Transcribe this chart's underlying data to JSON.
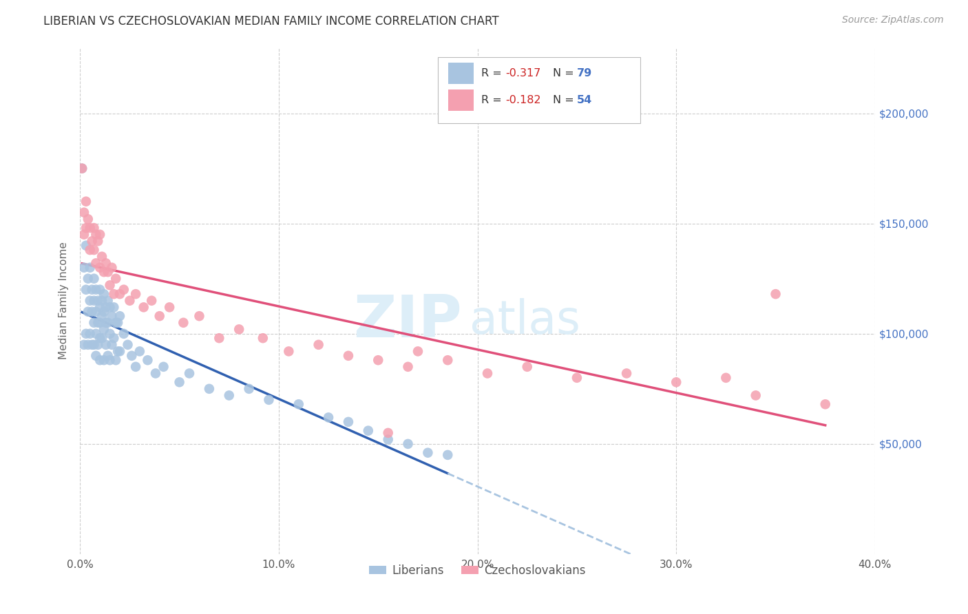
{
  "title": "LIBERIAN VS CZECHOSLOVAKIAN MEDIAN FAMILY INCOME CORRELATION CHART",
  "source": "Source: ZipAtlas.com",
  "ylabel": "Median Family Income",
  "right_ytick_labels": [
    "$50,000",
    "$100,000",
    "$150,000",
    "$200,000"
  ],
  "right_ytick_values": [
    50000,
    100000,
    150000,
    200000
  ],
  "xlim": [
    0.0,
    0.4
  ],
  "ylim": [
    0,
    230000
  ],
  "liberian_R": -0.317,
  "liberian_N": 79,
  "czech_R": -0.182,
  "czech_N": 54,
  "liberian_color": "#a8c4e0",
  "czech_color": "#f4a0b0",
  "liberian_line_color": "#3060b0",
  "czech_line_color": "#e0507a",
  "dashed_line_color": "#a8c4e0",
  "watermark_zip": "ZIP",
  "watermark_atlas": "atlas",
  "watermark_color": "#ddeef8",
  "liberian_x": [
    0.001,
    0.002,
    0.002,
    0.003,
    0.003,
    0.003,
    0.004,
    0.004,
    0.004,
    0.005,
    0.005,
    0.005,
    0.006,
    0.006,
    0.006,
    0.007,
    0.007,
    0.007,
    0.007,
    0.008,
    0.008,
    0.008,
    0.008,
    0.009,
    0.009,
    0.009,
    0.01,
    0.01,
    0.01,
    0.01,
    0.01,
    0.011,
    0.011,
    0.011,
    0.012,
    0.012,
    0.012,
    0.012,
    0.013,
    0.013,
    0.013,
    0.014,
    0.014,
    0.014,
    0.015,
    0.015,
    0.015,
    0.016,
    0.016,
    0.017,
    0.017,
    0.018,
    0.018,
    0.019,
    0.019,
    0.02,
    0.02,
    0.022,
    0.024,
    0.026,
    0.028,
    0.03,
    0.034,
    0.038,
    0.042,
    0.05,
    0.055,
    0.065,
    0.075,
    0.085,
    0.095,
    0.11,
    0.125,
    0.135,
    0.145,
    0.155,
    0.165,
    0.175,
    0.185
  ],
  "liberian_y": [
    175000,
    130000,
    95000,
    140000,
    120000,
    100000,
    125000,
    110000,
    95000,
    130000,
    115000,
    100000,
    120000,
    110000,
    95000,
    125000,
    115000,
    105000,
    95000,
    120000,
    110000,
    100000,
    90000,
    115000,
    105000,
    95000,
    120000,
    112000,
    105000,
    98000,
    88000,
    115000,
    108000,
    98000,
    118000,
    110000,
    102000,
    88000,
    112000,
    105000,
    95000,
    115000,
    105000,
    90000,
    112000,
    100000,
    88000,
    108000,
    95000,
    112000,
    98000,
    105000,
    88000,
    105000,
    92000,
    108000,
    92000,
    100000,
    95000,
    90000,
    85000,
    92000,
    88000,
    82000,
    85000,
    78000,
    82000,
    75000,
    72000,
    75000,
    70000,
    68000,
    62000,
    60000,
    56000,
    52000,
    50000,
    46000,
    45000
  ],
  "czech_x": [
    0.001,
    0.002,
    0.002,
    0.003,
    0.003,
    0.004,
    0.005,
    0.005,
    0.006,
    0.007,
    0.007,
    0.008,
    0.008,
    0.009,
    0.01,
    0.01,
    0.011,
    0.012,
    0.013,
    0.014,
    0.015,
    0.016,
    0.017,
    0.018,
    0.02,
    0.022,
    0.025,
    0.028,
    0.032,
    0.036,
    0.04,
    0.045,
    0.052,
    0.06,
    0.07,
    0.08,
    0.092,
    0.105,
    0.12,
    0.135,
    0.15,
    0.165,
    0.185,
    0.205,
    0.225,
    0.25,
    0.275,
    0.3,
    0.325,
    0.35,
    0.155,
    0.17,
    0.34,
    0.375
  ],
  "czech_y": [
    175000,
    155000,
    145000,
    160000,
    148000,
    152000,
    148000,
    138000,
    142000,
    148000,
    138000,
    145000,
    132000,
    142000,
    145000,
    130000,
    135000,
    128000,
    132000,
    128000,
    122000,
    130000,
    118000,
    125000,
    118000,
    120000,
    115000,
    118000,
    112000,
    115000,
    108000,
    112000,
    105000,
    108000,
    98000,
    102000,
    98000,
    92000,
    95000,
    90000,
    88000,
    85000,
    88000,
    82000,
    85000,
    80000,
    82000,
    78000,
    80000,
    118000,
    55000,
    92000,
    72000,
    68000
  ]
}
